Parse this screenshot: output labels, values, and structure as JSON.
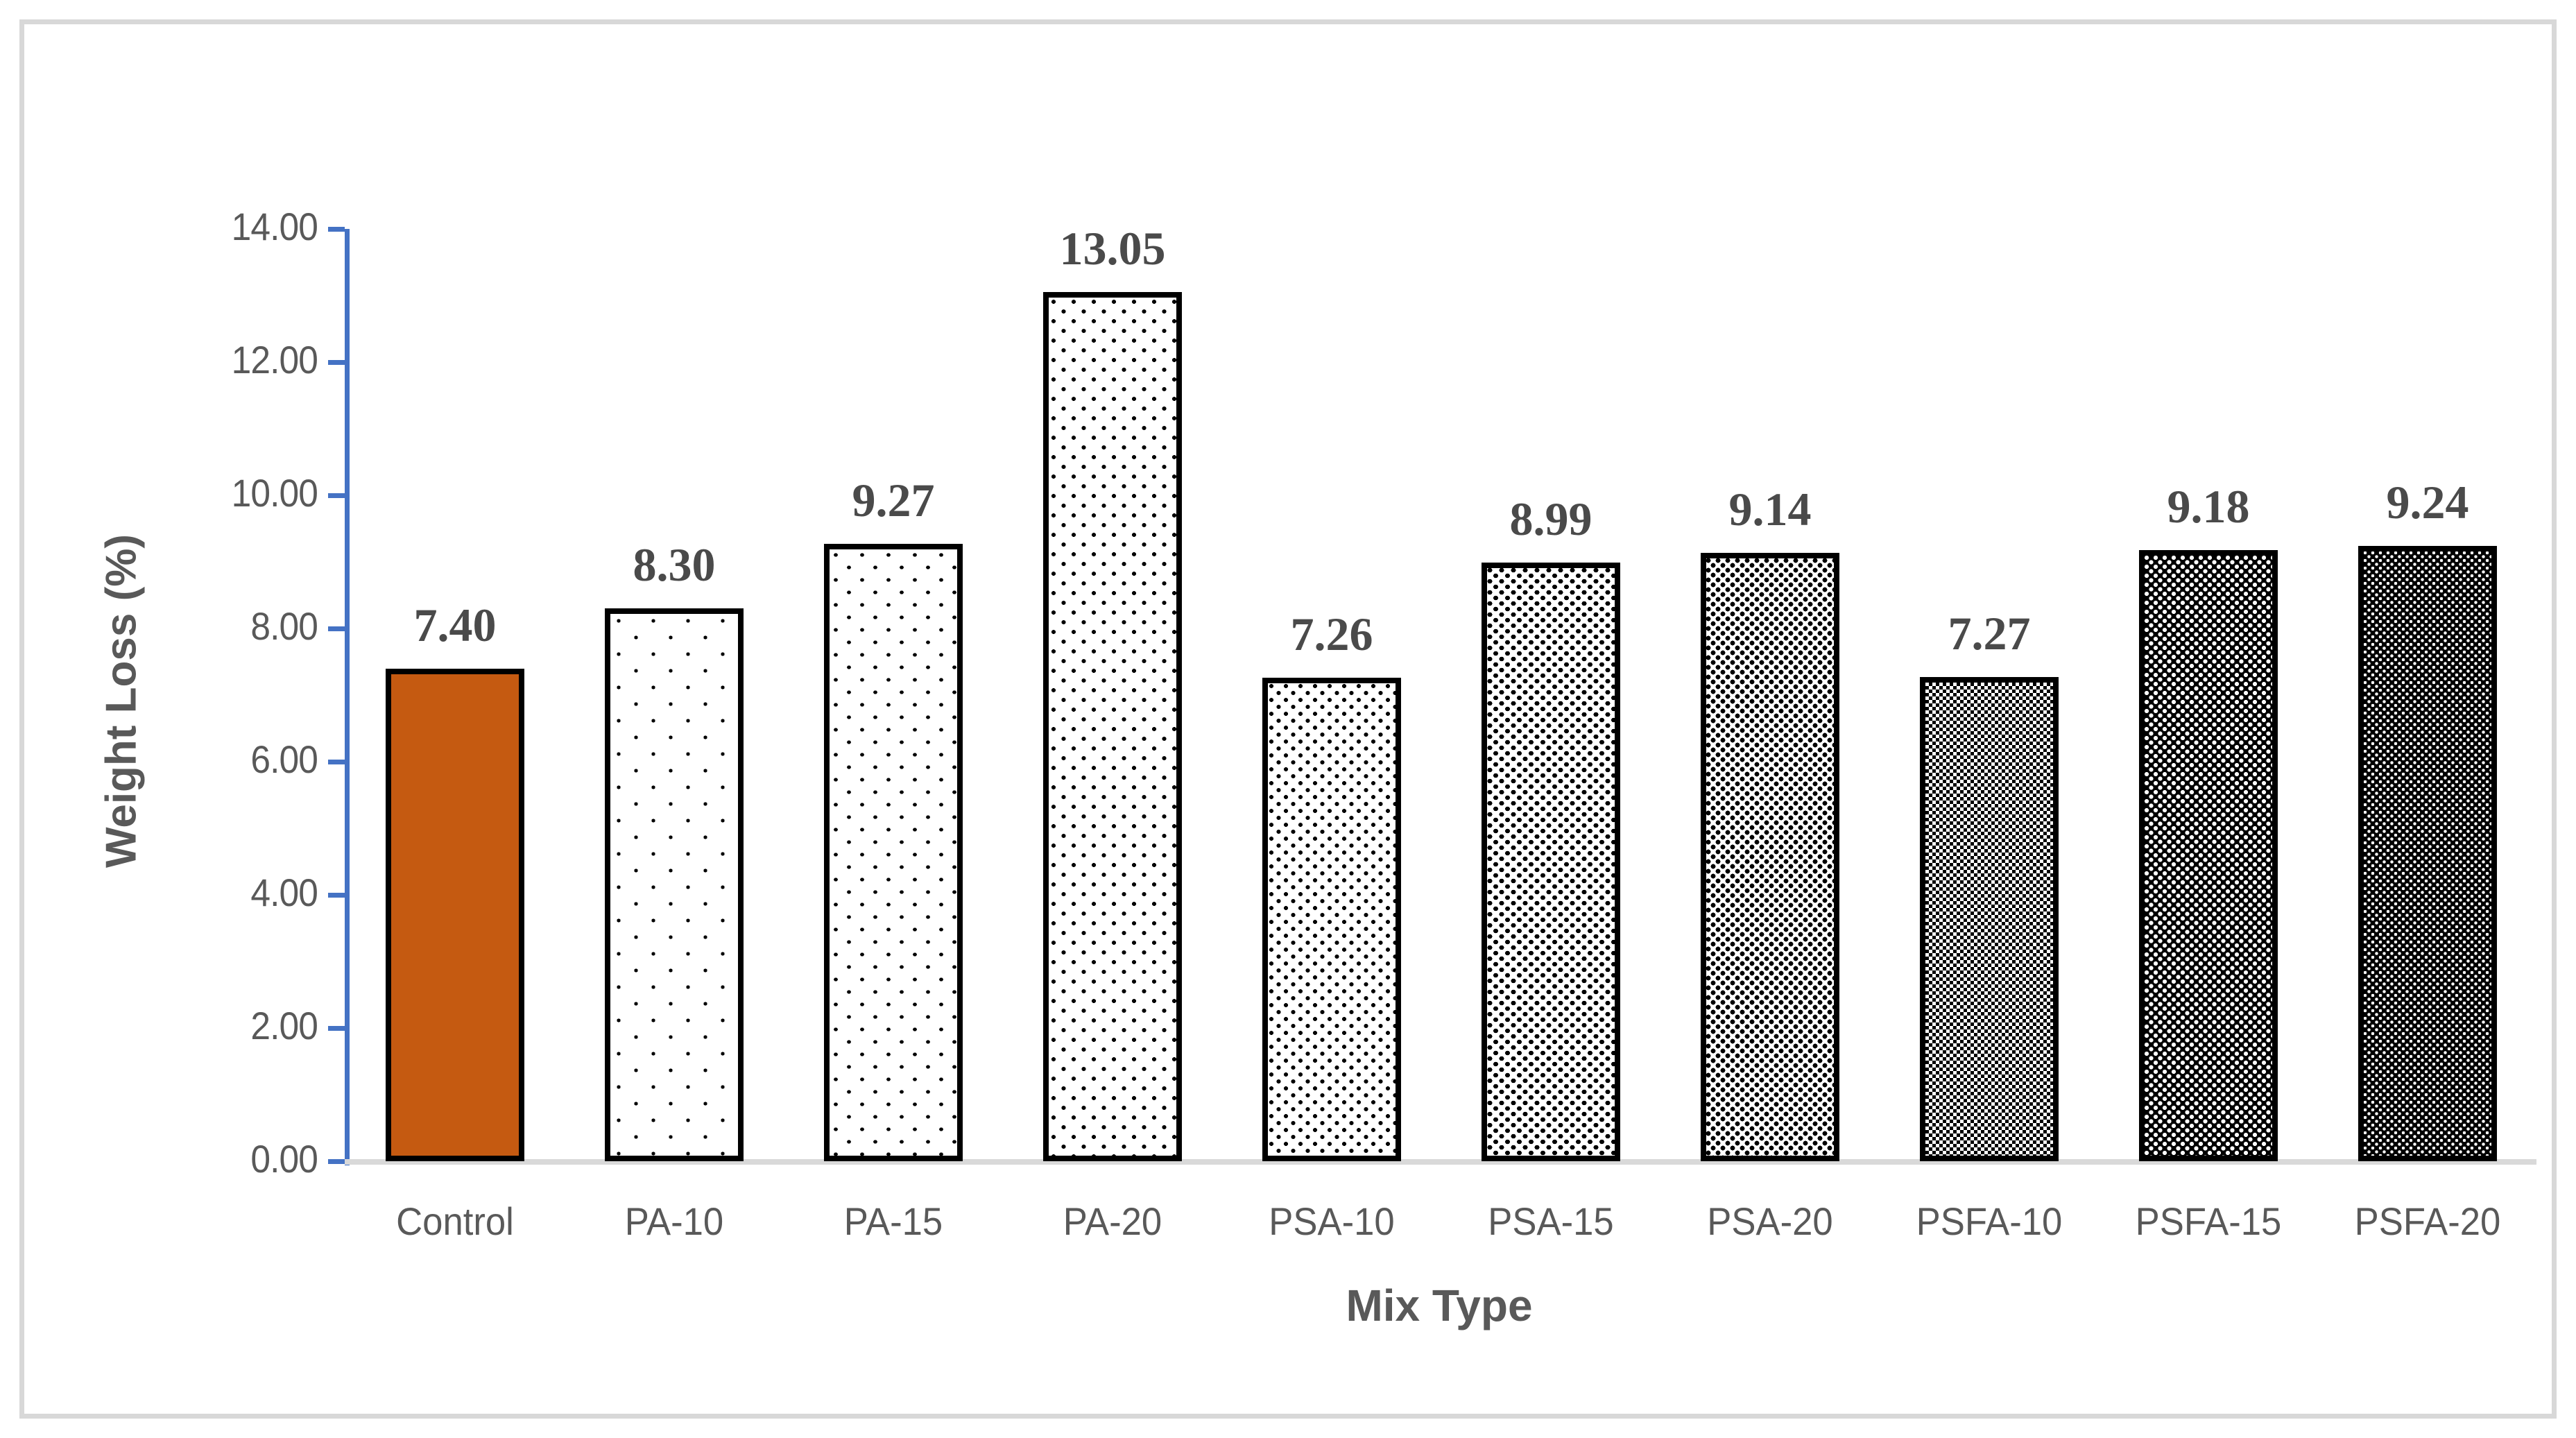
{
  "chart_data": {
    "type": "bar",
    "title": "",
    "xlabel": "Mix Type",
    "ylabel": "Weight Loss (%)",
    "categories": [
      "Control",
      "PA-10",
      "PA-15",
      "PA-20",
      "PSA-10",
      "PSA-15",
      "PSA-20",
      "PSFA-10",
      "PSFA-15",
      "PSFA-20"
    ],
    "values": [
      7.4,
      8.3,
      9.27,
      13.05,
      7.26,
      8.99,
      9.14,
      7.27,
      9.18,
      9.24
    ],
    "data_labels": [
      "7.40",
      "8.30",
      "9.27",
      "13.05",
      "7.26",
      "8.99",
      "9.14",
      "7.27",
      "9.18",
      "9.24"
    ],
    "ylim": [
      0,
      14
    ],
    "y_tick_step": 2,
    "y_tick_labels": [
      "0.00",
      "2.00",
      "4.00",
      "6.00",
      "8.00",
      "10.00",
      "12.00",
      "14.00"
    ],
    "grid": false,
    "legend": "none",
    "bar_patterns": [
      "solid-orange",
      "dots-xs",
      "dots-s",
      "dots-m",
      "dots-l",
      "dots-xl",
      "dots-xxl",
      "checker",
      "inv-dots",
      "inv-dots-dense"
    ],
    "bar_fill_description": "Control solid orange; others black-and-white dot patterns of increasing density left to right"
  },
  "colors": {
    "control_bar_fill": "#c55a11",
    "bar_border": "#000000",
    "y_axis_line": "#4472c4",
    "x_axis_line": "#d9d9d9",
    "axis_text": "#595959",
    "data_label_text": "#4a4a4a",
    "chart_frame_border": "#d8d8d8",
    "background": "#ffffff"
  }
}
